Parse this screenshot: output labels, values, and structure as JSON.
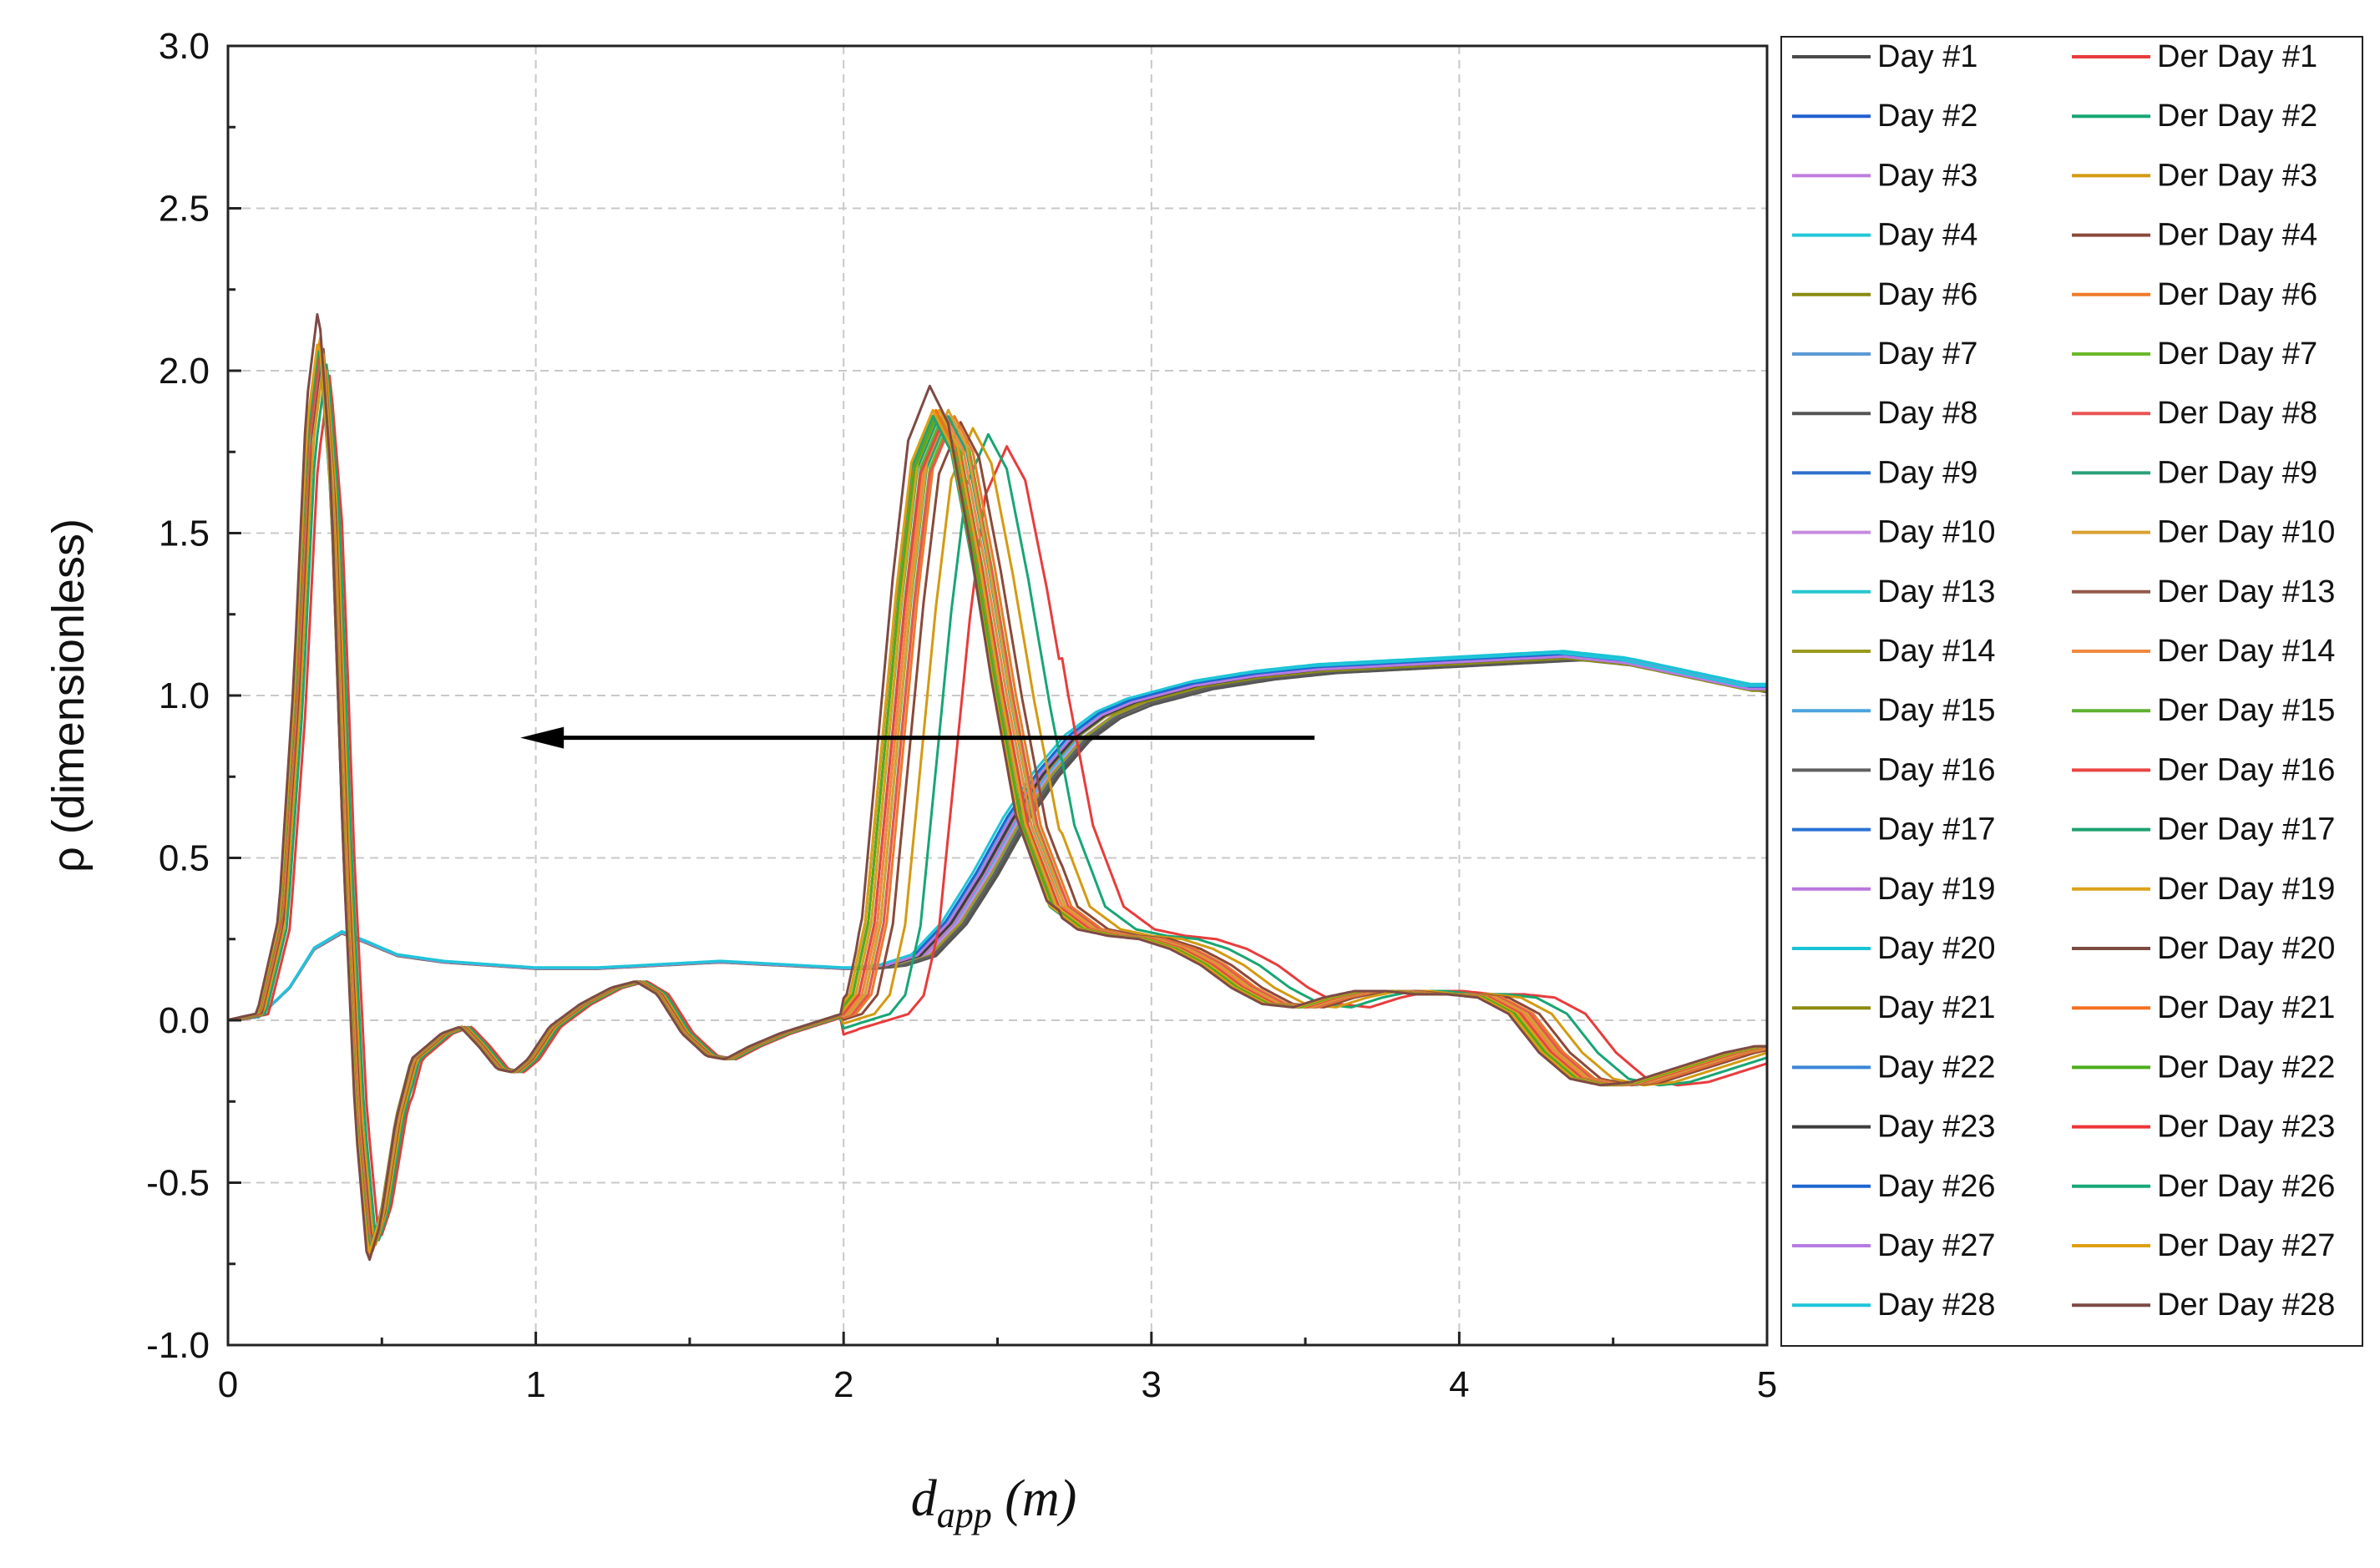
{
  "chart_data": {
    "type": "line",
    "xlabel_main": "d",
    "xlabel_sub": "app",
    "xlabel_unit": " (m)",
    "ylabel": "ρ (dimensionless)",
    "xlim": [
      0,
      5
    ],
    "ylim": [
      -1.0,
      3.0
    ],
    "xticks": [
      0,
      1,
      2,
      3,
      4,
      5
    ],
    "xtick_labels": [
      "0",
      "1",
      "2",
      "3",
      "4",
      "5"
    ],
    "yticks": [
      -1.0,
      -0.5,
      0.0,
      0.5,
      1.0,
      1.5,
      2.0,
      2.5,
      3.0
    ],
    "ytick_labels": [
      "-1.0",
      "-0.5",
      "0.0",
      "0.5",
      "1.0",
      "1.5",
      "2.0",
      "2.5",
      "3.0"
    ],
    "grid": true,
    "legend_position": "right-outside",
    "annotation": {
      "type": "arrow",
      "direction": "left",
      "from": [
        3.53,
        0.87
      ],
      "to": [
        0.95,
        0.87
      ]
    },
    "day_series": [
      {
        "name": "Day #1",
        "color": "#4a4a4a",
        "shift": 0.0,
        "amp": 1.0
      },
      {
        "name": "Day #2",
        "color": "#1f5fcf",
        "shift": 0.01,
        "amp": 1.01
      },
      {
        "name": "Day #3",
        "color": "#c07ee0",
        "shift": 0.02,
        "amp": 1.0
      },
      {
        "name": "Day #4",
        "color": "#22c8d8",
        "shift": 0.03,
        "amp": 1.02
      },
      {
        "name": "Day #6",
        "color": "#8a8a10",
        "shift": 0.01,
        "amp": 0.99
      },
      {
        "name": "Day #7",
        "color": "#5b9bd5",
        "shift": 0.02,
        "amp": 1.0
      },
      {
        "name": "Day #8",
        "color": "#555555",
        "shift": 0.0,
        "amp": 0.98
      },
      {
        "name": "Day #9",
        "color": "#2e6fcc",
        "shift": 0.04,
        "amp": 1.01
      },
      {
        "name": "Day #10",
        "color": "#c78be0",
        "shift": 0.03,
        "amp": 0.99
      },
      {
        "name": "Day #13",
        "color": "#27c7d0",
        "shift": 0.05,
        "amp": 1.02
      },
      {
        "name": "Day #14",
        "color": "#9a9a20",
        "shift": 0.02,
        "amp": 1.0
      },
      {
        "name": "Day #15",
        "color": "#4aa3df",
        "shift": 0.04,
        "amp": 1.01
      },
      {
        "name": "Day #16",
        "color": "#606060",
        "shift": 0.01,
        "amp": 0.99
      },
      {
        "name": "Day #17",
        "color": "#2a72d4",
        "shift": 0.05,
        "amp": 1.0
      },
      {
        "name": "Day #19",
        "color": "#bb77dd",
        "shift": 0.04,
        "amp": 1.01
      },
      {
        "name": "Day #20",
        "color": "#19c3d6",
        "shift": 0.06,
        "amp": 1.03
      },
      {
        "name": "Day #21",
        "color": "#8c8c12",
        "shift": 0.05,
        "amp": 0.99
      },
      {
        "name": "Day #22",
        "color": "#3a86d9",
        "shift": 0.06,
        "amp": 1.0
      },
      {
        "name": "Day #23",
        "color": "#3c3c3c",
        "shift": 0.05,
        "amp": 1.0
      },
      {
        "name": "Day #26",
        "color": "#1d66d0",
        "shift": 0.07,
        "amp": 1.01
      },
      {
        "name": "Day #27",
        "color": "#b67be0",
        "shift": 0.06,
        "amp": 1.0
      },
      {
        "name": "Day #28",
        "color": "#1fc5d9",
        "shift": 0.08,
        "amp": 1.02
      }
    ],
    "der_series": [
      {
        "name": "Der Day #1",
        "color": "#e83c3c",
        "shift": 0.21,
        "amp": 0.95
      },
      {
        "name": "Der Day #2",
        "color": "#17a673",
        "shift": 0.15,
        "amp": 0.97
      },
      {
        "name": "Der Day #3",
        "color": "#d49a12",
        "shift": 0.1,
        "amp": 0.98
      },
      {
        "name": "Der Day #4",
        "color": "#8a4a3a",
        "shift": 0.06,
        "amp": 0.99
      },
      {
        "name": "Der Day #6",
        "color": "#ef7a2a",
        "shift": 0.04,
        "amp": 1.0
      },
      {
        "name": "Der Day #7",
        "color": "#6ab82a",
        "shift": 0.03,
        "amp": 1.0
      },
      {
        "name": "Der Day #8",
        "color": "#e85555",
        "shift": 0.03,
        "amp": 0.99
      },
      {
        "name": "Der Day #9",
        "color": "#2aa07a",
        "shift": 0.02,
        "amp": 1.0
      },
      {
        "name": "Der Day #10",
        "color": "#d9a030",
        "shift": 0.02,
        "amp": 1.01
      },
      {
        "name": "Der Day #13",
        "color": "#94584a",
        "shift": 0.01,
        "amp": 1.0
      },
      {
        "name": "Der Day #14",
        "color": "#f08840",
        "shift": 0.01,
        "amp": 1.0
      },
      {
        "name": "Der Day #15",
        "color": "#5fb030",
        "shift": 0.0,
        "amp": 1.0
      },
      {
        "name": "Der Day #16",
        "color": "#ea4545",
        "shift": 0.0,
        "amp": 0.99
      },
      {
        "name": "Der Day #17",
        "color": "#1fa070",
        "shift": -0.01,
        "amp": 1.0
      },
      {
        "name": "Der Day #19",
        "color": "#dca21a",
        "shift": -0.01,
        "amp": 1.01
      },
      {
        "name": "Der Day #20",
        "color": "#7b4b40",
        "shift": -0.02,
        "amp": 1.0
      },
      {
        "name": "Der Day #21",
        "color": "#f57020",
        "shift": -0.02,
        "amp": 1.01
      },
      {
        "name": "Der Day #22",
        "color": "#4cae1c",
        "shift": -0.02,
        "amp": 1.0
      },
      {
        "name": "Der Day #23",
        "color": "#ee3535",
        "shift": -0.03,
        "amp": 1.0
      },
      {
        "name": "Der Day #26",
        "color": "#18a878",
        "shift": -0.03,
        "amp": 1.0
      },
      {
        "name": "Der Day #27",
        "color": "#dda010",
        "shift": -0.03,
        "amp": 1.01
      },
      {
        "name": "Der Day #28",
        "color": "#7d4a45",
        "shift": -0.04,
        "amp": 1.05
      }
    ],
    "day_profile": [
      [
        0,
        0
      ],
      [
        0.1,
        0.01
      ],
      [
        0.2,
        0.1
      ],
      [
        0.28,
        0.22
      ],
      [
        0.37,
        0.27
      ],
      [
        0.45,
        0.24
      ],
      [
        0.55,
        0.2
      ],
      [
        0.7,
        0.18
      ],
      [
        0.85,
        0.17
      ],
      [
        1.0,
        0.16
      ],
      [
        1.2,
        0.16
      ],
      [
        1.4,
        0.17
      ],
      [
        1.6,
        0.18
      ],
      [
        1.8,
        0.17
      ],
      [
        2.0,
        0.16
      ],
      [
        2.1,
        0.16
      ],
      [
        2.2,
        0.17
      ],
      [
        2.3,
        0.2
      ],
      [
        2.4,
        0.3
      ],
      [
        2.5,
        0.45
      ],
      [
        2.6,
        0.62
      ],
      [
        2.7,
        0.76
      ],
      [
        2.8,
        0.87
      ],
      [
        2.9,
        0.94
      ],
      [
        3.0,
        0.98
      ],
      [
        3.2,
        1.03
      ],
      [
        3.4,
        1.06
      ],
      [
        3.6,
        1.08
      ],
      [
        3.8,
        1.09
      ],
      [
        4.0,
        1.1
      ],
      [
        4.2,
        1.11
      ],
      [
        4.4,
        1.12
      ],
      [
        4.6,
        1.1
      ],
      [
        4.8,
        1.06
      ],
      [
        5.0,
        1.02
      ]
    ],
    "der_profile": [
      [
        0,
        0
      ],
      [
        0.1,
        0.02
      ],
      [
        0.17,
        0.3
      ],
      [
        0.22,
        1.0
      ],
      [
        0.26,
        1.8
      ],
      [
        0.3,
        2.1
      ],
      [
        0.34,
        1.6
      ],
      [
        0.38,
        0.5
      ],
      [
        0.42,
        -0.3
      ],
      [
        0.46,
        -0.72
      ],
      [
        0.5,
        -0.6
      ],
      [
        0.55,
        -0.3
      ],
      [
        0.6,
        -0.12
      ],
      [
        0.7,
        -0.04
      ],
      [
        0.76,
        -0.02
      ],
      [
        0.82,
        -0.08
      ],
      [
        0.88,
        -0.15
      ],
      [
        0.93,
        -0.16
      ],
      [
        0.98,
        -0.12
      ],
      [
        1.05,
        -0.02
      ],
      [
        1.15,
        0.05
      ],
      [
        1.25,
        0.1
      ],
      [
        1.33,
        0.12
      ],
      [
        1.4,
        0.08
      ],
      [
        1.48,
        -0.04
      ],
      [
        1.56,
        -0.11
      ],
      [
        1.62,
        -0.12
      ],
      [
        1.7,
        -0.08
      ],
      [
        1.8,
        -0.04
      ],
      [
        1.9,
        -0.01
      ],
      [
        2.0,
        0.02
      ],
      [
        2.05,
        0.08
      ],
      [
        2.1,
        0.3
      ],
      [
        2.15,
        0.8
      ],
      [
        2.2,
        1.3
      ],
      [
        2.25,
        1.7
      ],
      [
        2.32,
        1.86
      ],
      [
        2.38,
        1.75
      ],
      [
        2.45,
        1.4
      ],
      [
        2.52,
        1.0
      ],
      [
        2.6,
        0.6
      ],
      [
        2.7,
        0.35
      ],
      [
        2.8,
        0.28
      ],
      [
        2.9,
        0.26
      ],
      [
        3.0,
        0.25
      ],
      [
        3.1,
        0.22
      ],
      [
        3.2,
        0.17
      ],
      [
        3.3,
        0.1
      ],
      [
        3.4,
        0.05
      ],
      [
        3.5,
        0.04
      ],
      [
        3.6,
        0.07
      ],
      [
        3.7,
        0.09
      ],
      [
        3.8,
        0.09
      ],
      [
        3.9,
        0.08
      ],
      [
        4.0,
        0.08
      ],
      [
        4.1,
        0.07
      ],
      [
        4.2,
        0.02
      ],
      [
        4.3,
        -0.1
      ],
      [
        4.4,
        -0.18
      ],
      [
        4.5,
        -0.2
      ],
      [
        4.6,
        -0.19
      ],
      [
        4.7,
        -0.16
      ],
      [
        4.8,
        -0.13
      ],
      [
        4.9,
        -0.1
      ],
      [
        5.0,
        -0.08
      ]
    ]
  }
}
